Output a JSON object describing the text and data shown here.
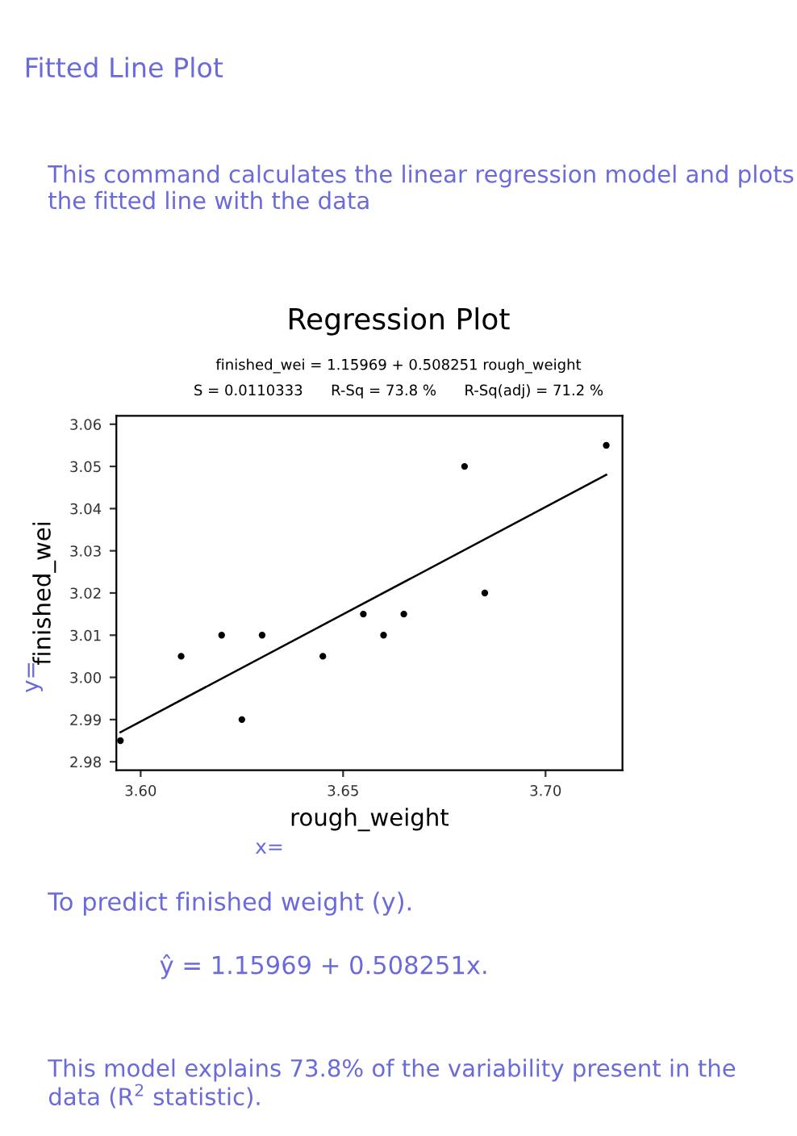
{
  "chart_data": {
    "type": "scatter",
    "title": "Regression Plot",
    "subtitle": "finished_wei = 1.15969 + 0.508251 rough_weight\nS = 0.0110333      R-Sq = 73.8 %      R-Sq(adj) = 71.2 %",
    "xlabel": "rough_weight",
    "ylabel": "finished_wei",
    "series": [
      {
        "color": "#000000",
        "marker": "circle",
        "x": [
          3.595,
          3.61,
          3.62,
          3.625,
          3.63,
          3.645,
          3.655,
          3.66,
          3.665,
          3.68,
          3.685,
          3.715
        ],
        "values": [
          2.985,
          3.005,
          3.01,
          2.99,
          3.01,
          3.005,
          3.015,
          3.01,
          3.015,
          3.05,
          3.02,
          3.055
        ]
      },
      {
        "type": "line",
        "color": "#000000",
        "marker": "none",
        "line_style": "solid",
        "x": [
          3.595,
          3.715
        ],
        "values": [
          2.987,
          3.048
        ]
      }
    ],
    "xlim": [
      3.594,
      3.719
    ],
    "ylim": [
      2.978,
      3.062
    ],
    "xticks": [
      {
        "value": 3.6,
        "label": "3.60"
      },
      {
        "value": 3.65,
        "label": "3.65"
      },
      {
        "value": 3.7,
        "label": "3.70"
      }
    ],
    "yticks": [
      {
        "value": 2.98,
        "label": "2.98"
      },
      {
        "value": 2.99,
        "label": "2.99"
      },
      {
        "value": 3.0,
        "label": "3.00"
      },
      {
        "value": 3.01,
        "label": "3.01"
      },
      {
        "value": 3.02,
        "label": "3.02"
      },
      {
        "value": 3.03,
        "label": "3.03"
      },
      {
        "value": 3.04,
        "label": "3.04"
      },
      {
        "value": 3.05,
        "label": "3.05"
      },
      {
        "value": 3.06,
        "label": "3.06"
      }
    ],
    "grid": false,
    "legend": false,
    "annotations": [
      "Fitted Line Plot",
      "This command calculates the linear regression model and plots the fitted line with the data",
      "y=",
      "x=",
      "To predict finished weight (y).",
      "ŷ = 1.15969 + 0.508251x.",
      "This model explains 73.8% of the variability present in the data (R$^{2}$ statistic)."
    ]
  }
}
